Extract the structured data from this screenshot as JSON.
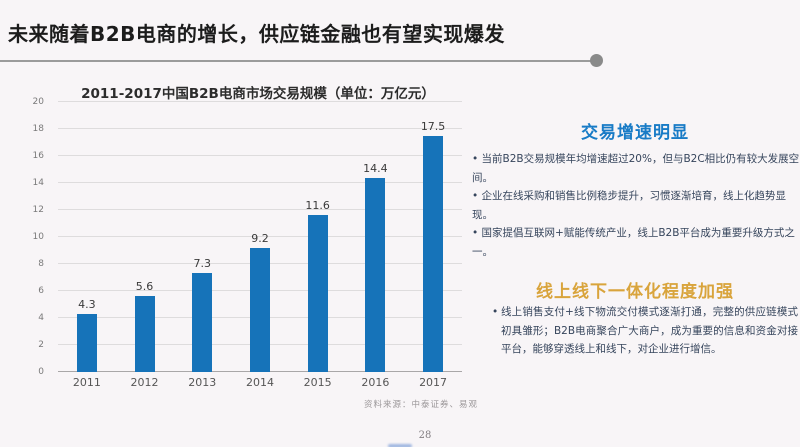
{
  "page": {
    "title": "未来随着B2B电商的增长，供应链金融也有望实现爆发",
    "page_number": "28"
  },
  "chart": {
    "title": "2011-2017中国B2B电商市场交易规模（单位：万亿元）",
    "source": "资料来源：中泰证券、易观"
  },
  "chart_data": {
    "type": "bar",
    "categories": [
      "2011",
      "2012",
      "2013",
      "2014",
      "2015",
      "2016",
      "2017"
    ],
    "values": [
      4.3,
      5.6,
      7.3,
      9.2,
      11.6,
      14.4,
      17.5
    ],
    "title": "2011-2017中国B2B电商市场交易规模（单位：万亿元）",
    "xlabel": "",
    "ylabel": "",
    "ylim": [
      0,
      20
    ],
    "ytick_step": 2,
    "grid": true,
    "legend": false,
    "bar_color": "#1673b9",
    "data_labels": true
  },
  "sections": [
    {
      "heading": "交易增速明显",
      "heading_color": "#187bc6",
      "bullets": [
        "当前B2B交易规模年均增速超过20%，但与B2C相比仍有较大发展空间。",
        "企业在线采购和销售比例稳步提升，习惯逐渐培育，线上化趋势显现。",
        "国家提倡互联网+赋能传统产业，线上B2B平台成为重要升级方式之一。"
      ]
    },
    {
      "heading": "线上线下一体化程度加强",
      "heading_color": "#d9a43c",
      "bullets": [
        "线上销售支付+线下物流交付模式逐渐打通，完整的供应链模式初具雏形；B2B电商聚合广大商户，成为重要的信息和资金对接平台，能够穿透线上和线下，对企业进行增信。"
      ]
    }
  ]
}
